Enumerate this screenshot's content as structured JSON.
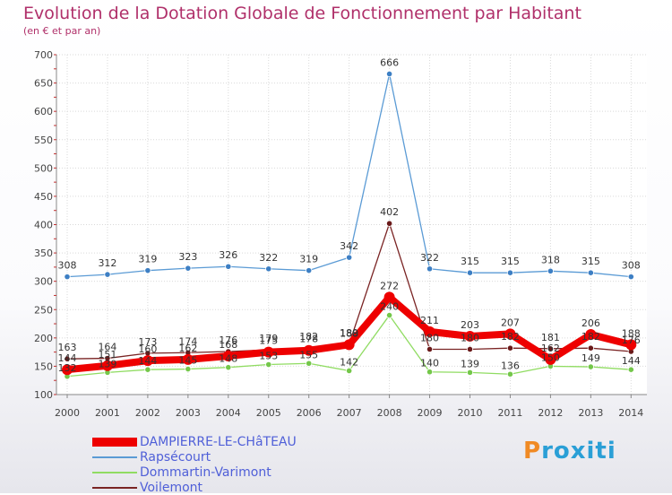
{
  "chart_data": {
    "type": "line",
    "title": "Evolution de la Dotation Globale de Fonctionnement par Habitant",
    "subtitle": "(en € et par an)",
    "x": [
      "2000",
      "2001",
      "2002",
      "2003",
      "2004",
      "2005",
      "2006",
      "2007",
      "2008",
      "2009",
      "2010",
      "2011",
      "2012",
      "2013",
      "2014"
    ],
    "ylim": [
      100,
      700
    ],
    "yticks": [
      100,
      150,
      200,
      250,
      300,
      350,
      400,
      450,
      500,
      550,
      600,
      650,
      700
    ],
    "grid": true,
    "legend_position": "bottom-left",
    "series": [
      {
        "name": "DAMPIERRE-LE-CHâTEAU",
        "color": "#ee0000",
        "values": [
          144,
          151,
          160,
          162,
          168,
          175,
          178,
          188,
          272,
          211,
          203,
          207,
          162,
          206,
          188
        ]
      },
      {
        "name": "Rapsécourt",
        "color": "#5b9bd5",
        "values": [
          308,
          312,
          319,
          323,
          326,
          322,
          319,
          342,
          666,
          322,
          315,
          315,
          318,
          315,
          308
        ]
      },
      {
        "name": "Dommartin-Varimont",
        "color": "#90dc62",
        "values": [
          132,
          139,
          144,
          145,
          148,
          153,
          155,
          142,
          240,
          140,
          139,
          136,
          150,
          149,
          144
        ]
      },
      {
        "name": "Voilemont",
        "color": "#7a2424",
        "values": [
          163,
          164,
          173,
          174,
          176,
          179,
          182,
          189,
          402,
          180,
          180,
          182,
          181,
          182,
          176
        ]
      }
    ]
  },
  "logo": {
    "first": "P",
    "rest": "roxiti"
  }
}
